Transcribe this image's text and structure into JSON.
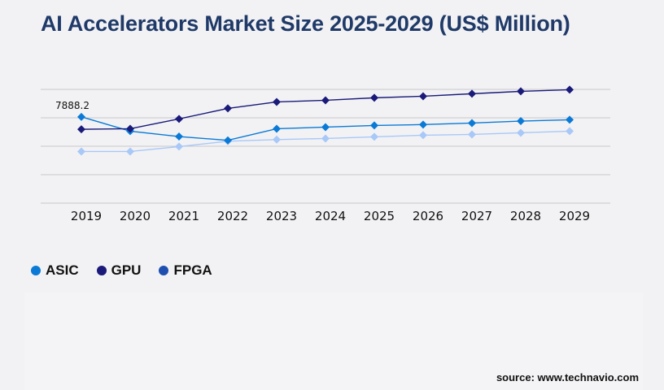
{
  "title": "AI Accelerators Market Size 2025-2029 (US$ Million)",
  "source": "source: www.technavio.com",
  "chart_data": {
    "type": "line",
    "title": "AI Accelerators Market Size 2025-2029 (US$ Million)",
    "xlabel": "",
    "ylabel": "",
    "categories": [
      "2019",
      "2020",
      "2021",
      "2022",
      "2023",
      "2024",
      "2025",
      "2026",
      "2027",
      "2028",
      "2029"
    ],
    "ylim": [
      0,
      10400
    ],
    "grid": true,
    "legend_position": "bottom-left",
    "series": [
      {
        "name": "ASIC",
        "color": "#0a7ad6",
        "legend_color": "#0a7ad6",
        "values": [
          7888.2,
          6580,
          6090,
          5740,
          6800,
          6950,
          7100,
          7180,
          7320,
          7500,
          7620
        ]
      },
      {
        "name": "GPU",
        "color": "#1a1a7a",
        "legend_color": "#1a1a7a",
        "values": [
          6750,
          6800,
          7700,
          8660,
          9250,
          9400,
          9630,
          9770,
          10000,
          10220,
          10370
        ]
      },
      {
        "name": "FPGA",
        "color": "#a8c8f8",
        "legend_color": "#1e4fb0",
        "values": [
          4720,
          4720,
          5170,
          5660,
          5810,
          5910,
          6060,
          6210,
          6280,
          6430,
          6580
        ]
      }
    ],
    "data_labels": [
      {
        "series": "ASIC",
        "category": "2019",
        "text": "7888.2"
      }
    ]
  }
}
